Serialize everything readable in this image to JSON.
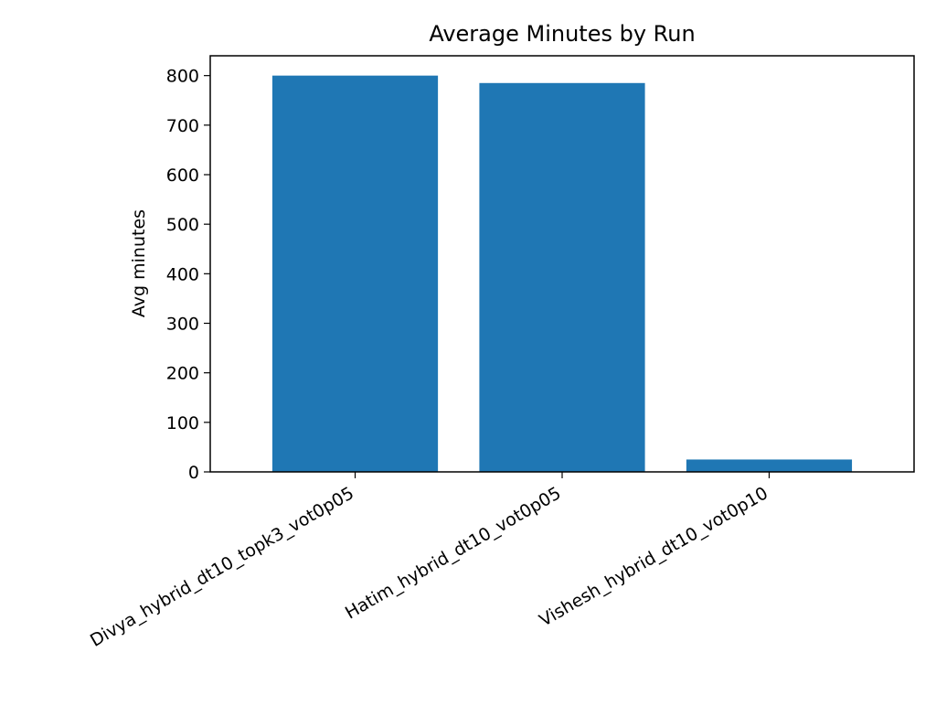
{
  "chart_data": {
    "type": "bar",
    "title": "Average Minutes by Run",
    "xlabel": "",
    "ylabel": "Avg minutes",
    "categories": [
      "Divya_hybrid_dt10_topk3_vot0p05",
      "Hatim_hybrid_dt10_vot0p05",
      "Vishesh_hybrid_dt10_vot0p10"
    ],
    "values": [
      800,
      785,
      25
    ],
    "ylim": [
      0,
      840
    ],
    "yticks": [
      0,
      100,
      200,
      300,
      400,
      500,
      600,
      700,
      800
    ],
    "bar_color": "#1f77b4",
    "grid": false,
    "legend": "none"
  }
}
